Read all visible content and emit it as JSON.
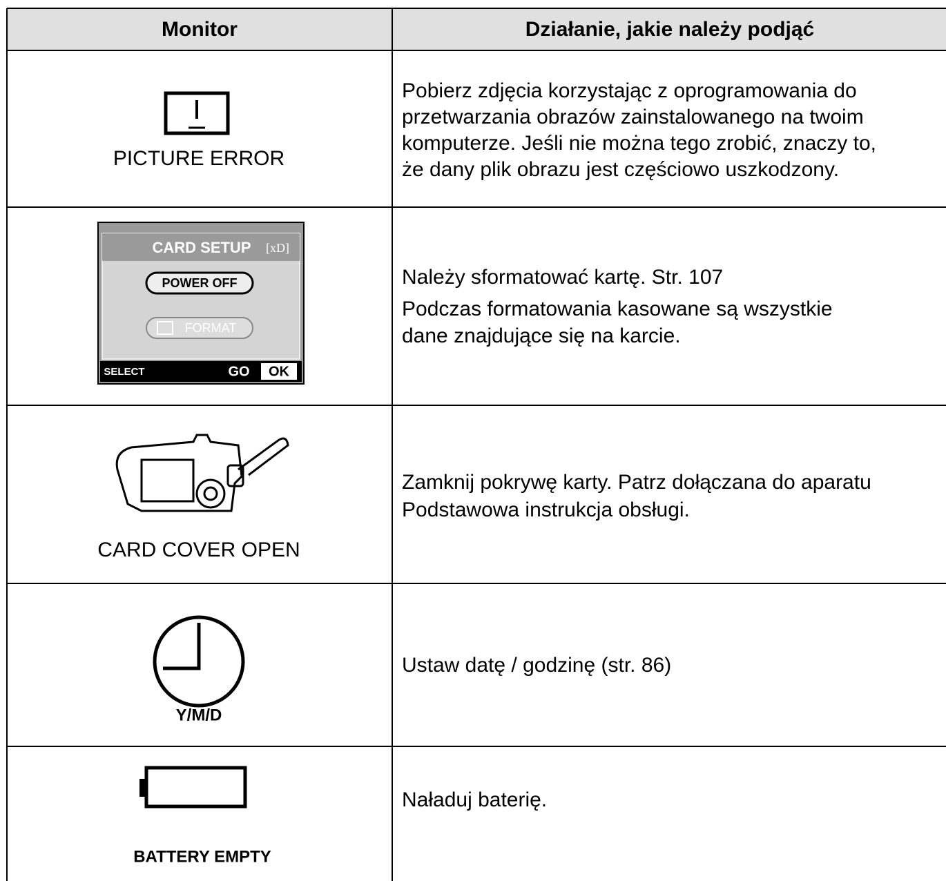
{
  "table": {
    "header": [
      "Monitor",
      "Działanie, jakie należy podjąć"
    ],
    "rows": [
      {
        "monitor": {
          "label": "PICTURE ERROR"
        },
        "action": [
          "Pobierz zdjęcia korzystając z oprogramowania do",
          "przetwarzania obrazów zainstalowanego na twoim",
          "komputerze. Jeśli nie można tego zrobić, znaczy to,",
          "że dany plik obrazu jest częściowo uszkodzony."
        ]
      },
      {
        "monitor": {
          "screen": {
            "title": "CARD SETUP",
            "media": "[xD]",
            "option1": "POWER OFF",
            "option2": "FORMAT",
            "select": "SELECT",
            "go": "GO",
            "ok": "OK"
          }
        },
        "action": [
          "Należy sformatować kartę. Str. 107",
          "Podczas formatowania kasowane są wszystkie",
          "dane znajdujące się na karcie."
        ]
      },
      {
        "monitor": {
          "label": "CARD COVER OPEN"
        },
        "action": [
          "Zamknij pokrywę karty. Patrz dołączana do aparatu",
          "Podstawowa instrukcja obsługi."
        ]
      },
      {
        "monitor": {
          "label": "Y/M/D"
        },
        "action": [
          "Ustaw datę / godzinę (str. 86)"
        ]
      },
      {
        "monitor": {
          "label": "BATTERY EMPTY"
        },
        "action": [
          "Naładuj baterię."
        ]
      }
    ]
  }
}
